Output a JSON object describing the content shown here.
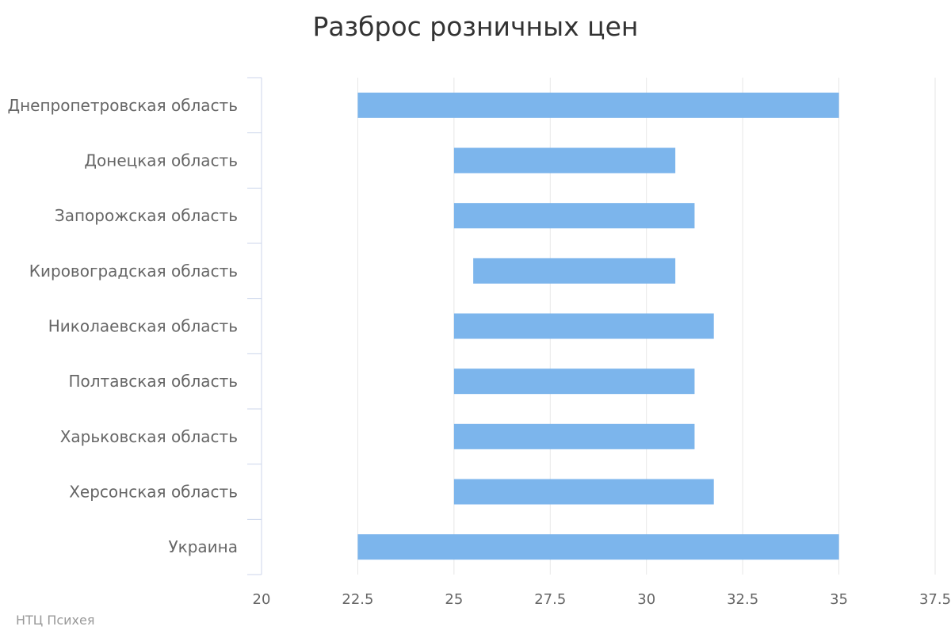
{
  "chart_data": {
    "type": "bar",
    "orientation": "horizontal",
    "chart_style": "floating-range-bar",
    "title": "Разброс розничных цен",
    "categories": [
      "Днепропетровская область",
      "Донецкая область",
      "Запорожская область",
      "Кировоградская область",
      "Николаевская область",
      "Полтавская область",
      "Харьковская область",
      "Херсонская область",
      "Украина"
    ],
    "series": [
      {
        "low": [
          22.5,
          25.0,
          25.0,
          25.5,
          25.0,
          25.0,
          25.0,
          25.0,
          22.5
        ],
        "high": [
          35.0,
          30.75,
          31.25,
          30.75,
          31.75,
          31.25,
          31.25,
          31.75,
          35.0
        ]
      }
    ],
    "xlim": [
      20,
      37.5
    ],
    "x_ticks": [
      "20",
      "22.5",
      "25",
      "27.5",
      "30",
      "32.5",
      "35",
      "37.5"
    ],
    "grid": true,
    "legend": "none",
    "bar_color": "#7cb5ec",
    "grid_color": "#e6e6e6",
    "axis_color": "#ccd6eb",
    "label_color": "#666666"
  },
  "credits": "НТЦ Психея"
}
